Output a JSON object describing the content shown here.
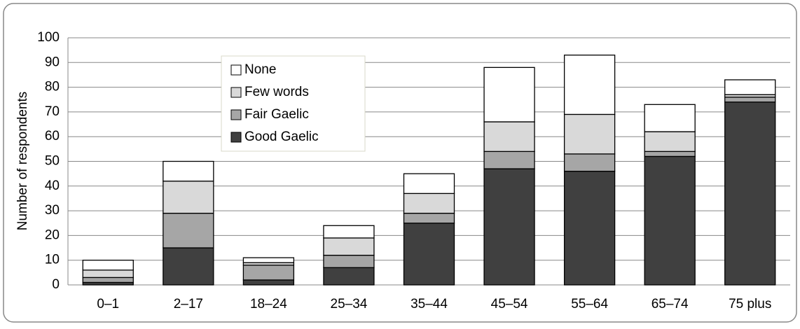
{
  "chart_data": {
    "type": "bar",
    "stacked": true,
    "grid": true,
    "legend": "upper left",
    "y_label": "Number of respondents",
    "categories": [
      "0–1",
      "2–17",
      "18–24",
      "25–34",
      "35–44",
      "45–54",
      "55–64",
      "65–74",
      "75 plus"
    ],
    "series": [
      {
        "name": "Good Gaelic",
        "color": "#404040",
        "values": [
          1,
          15,
          2,
          7,
          25,
          47,
          46,
          52,
          74
        ]
      },
      {
        "name": "Fair Gaelic",
        "color": "#a6a6a6",
        "values": [
          2,
          14,
          6,
          5,
          4,
          7,
          7,
          2,
          2
        ]
      },
      {
        "name": "Few words",
        "color": "#d9d9d9",
        "values": [
          3,
          13,
          1,
          7,
          8,
          12,
          16,
          8,
          1
        ]
      },
      {
        "name": "None",
        "color": "#ffffff",
        "values": [
          4,
          8,
          2,
          5,
          8,
          22,
          24,
          11,
          6
        ]
      }
    ],
    "ylim": [
      0,
      100
    ],
    "yticks": [
      0,
      10,
      20,
      30,
      40,
      50,
      60,
      70,
      80,
      90,
      100
    ]
  }
}
